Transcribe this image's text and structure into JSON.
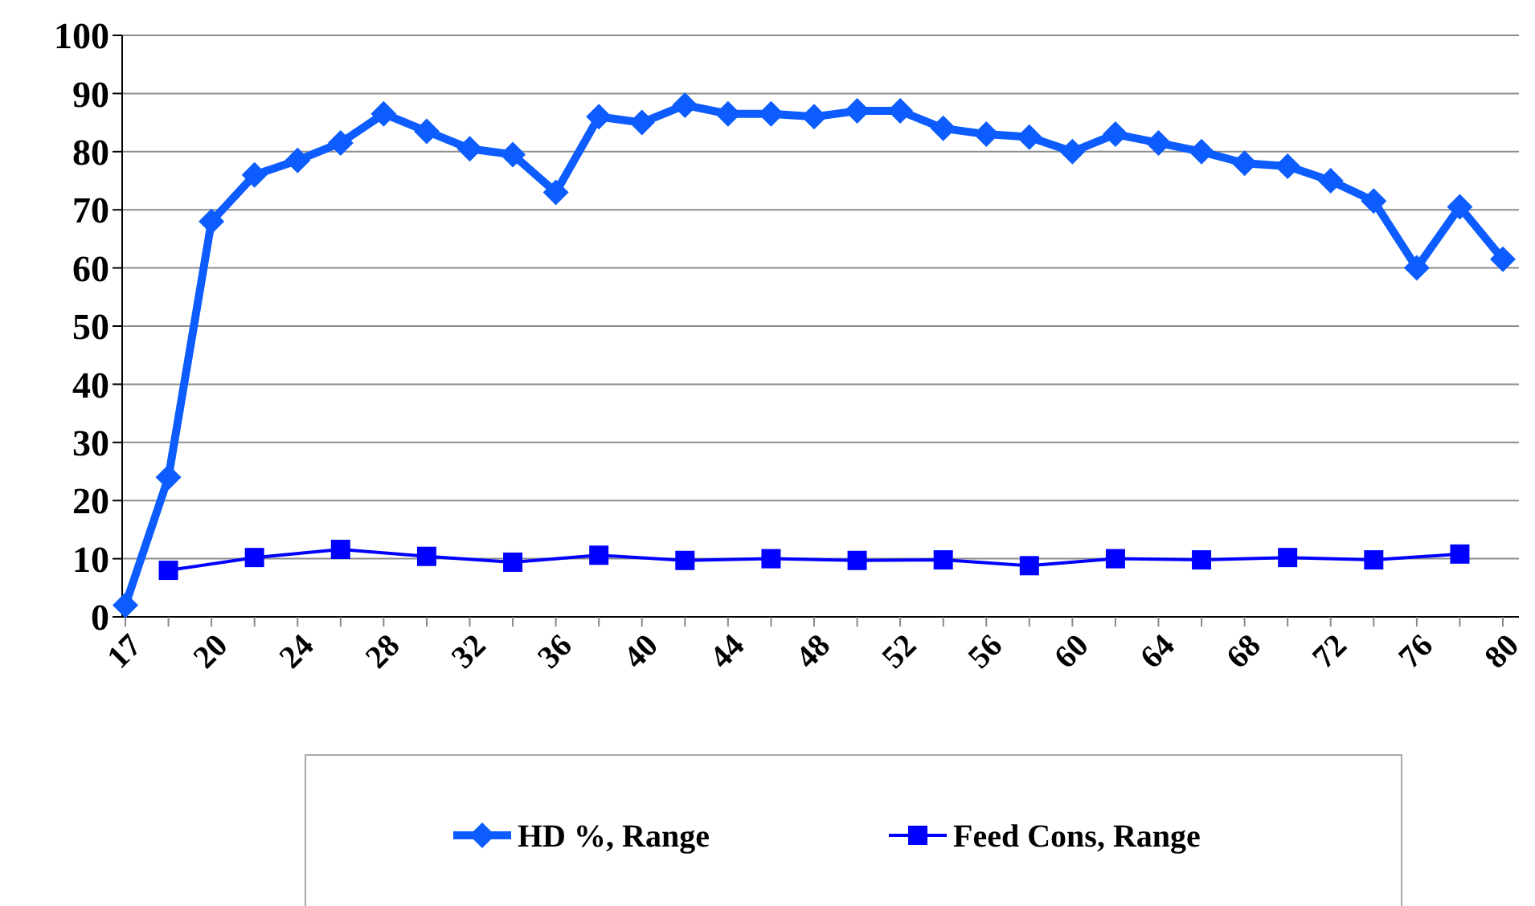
{
  "chart_data": {
    "type": "line",
    "categories": [
      "17",
      null,
      "20",
      null,
      "24",
      null,
      "28",
      null,
      "32",
      null,
      "36",
      null,
      "40",
      null,
      "44",
      null,
      "48",
      null,
      "52",
      null,
      "56",
      null,
      "60",
      null,
      "64",
      null,
      "68",
      null,
      "72",
      null,
      "76",
      null,
      "80"
    ],
    "series": [
      {
        "name": "HD %, Range",
        "color": "#0d5cff",
        "marker": "diamond",
        "values": [
          2,
          24,
          68,
          76,
          78.5,
          81.5,
          86.5,
          83.5,
          80.5,
          79.5,
          73,
          86,
          85,
          88,
          86.5,
          86.5,
          86,
          87,
          87,
          84,
          83,
          82.5,
          80,
          83,
          81.5,
          80,
          78,
          77.5,
          75,
          71.5,
          60,
          70.5,
          61.5
        ]
      },
      {
        "name": "Feed Cons, Range",
        "color": "#0000ff",
        "marker": "square",
        "values": [
          null,
          8,
          null,
          10.2,
          null,
          11.6,
          null,
          10.4,
          null,
          9.4,
          null,
          10.6,
          null,
          9.7,
          null,
          10,
          null,
          9.7,
          null,
          9.8,
          null,
          8.8,
          null,
          10,
          null,
          9.8,
          null,
          10.2,
          null,
          9.8,
          null,
          10.8,
          null
        ]
      }
    ],
    "ylim": [
      0,
      100
    ],
    "yticks": [
      0,
      10,
      20,
      30,
      40,
      50,
      60,
      70,
      80,
      90,
      100
    ],
    "grid": "y",
    "legend": "bottom"
  }
}
